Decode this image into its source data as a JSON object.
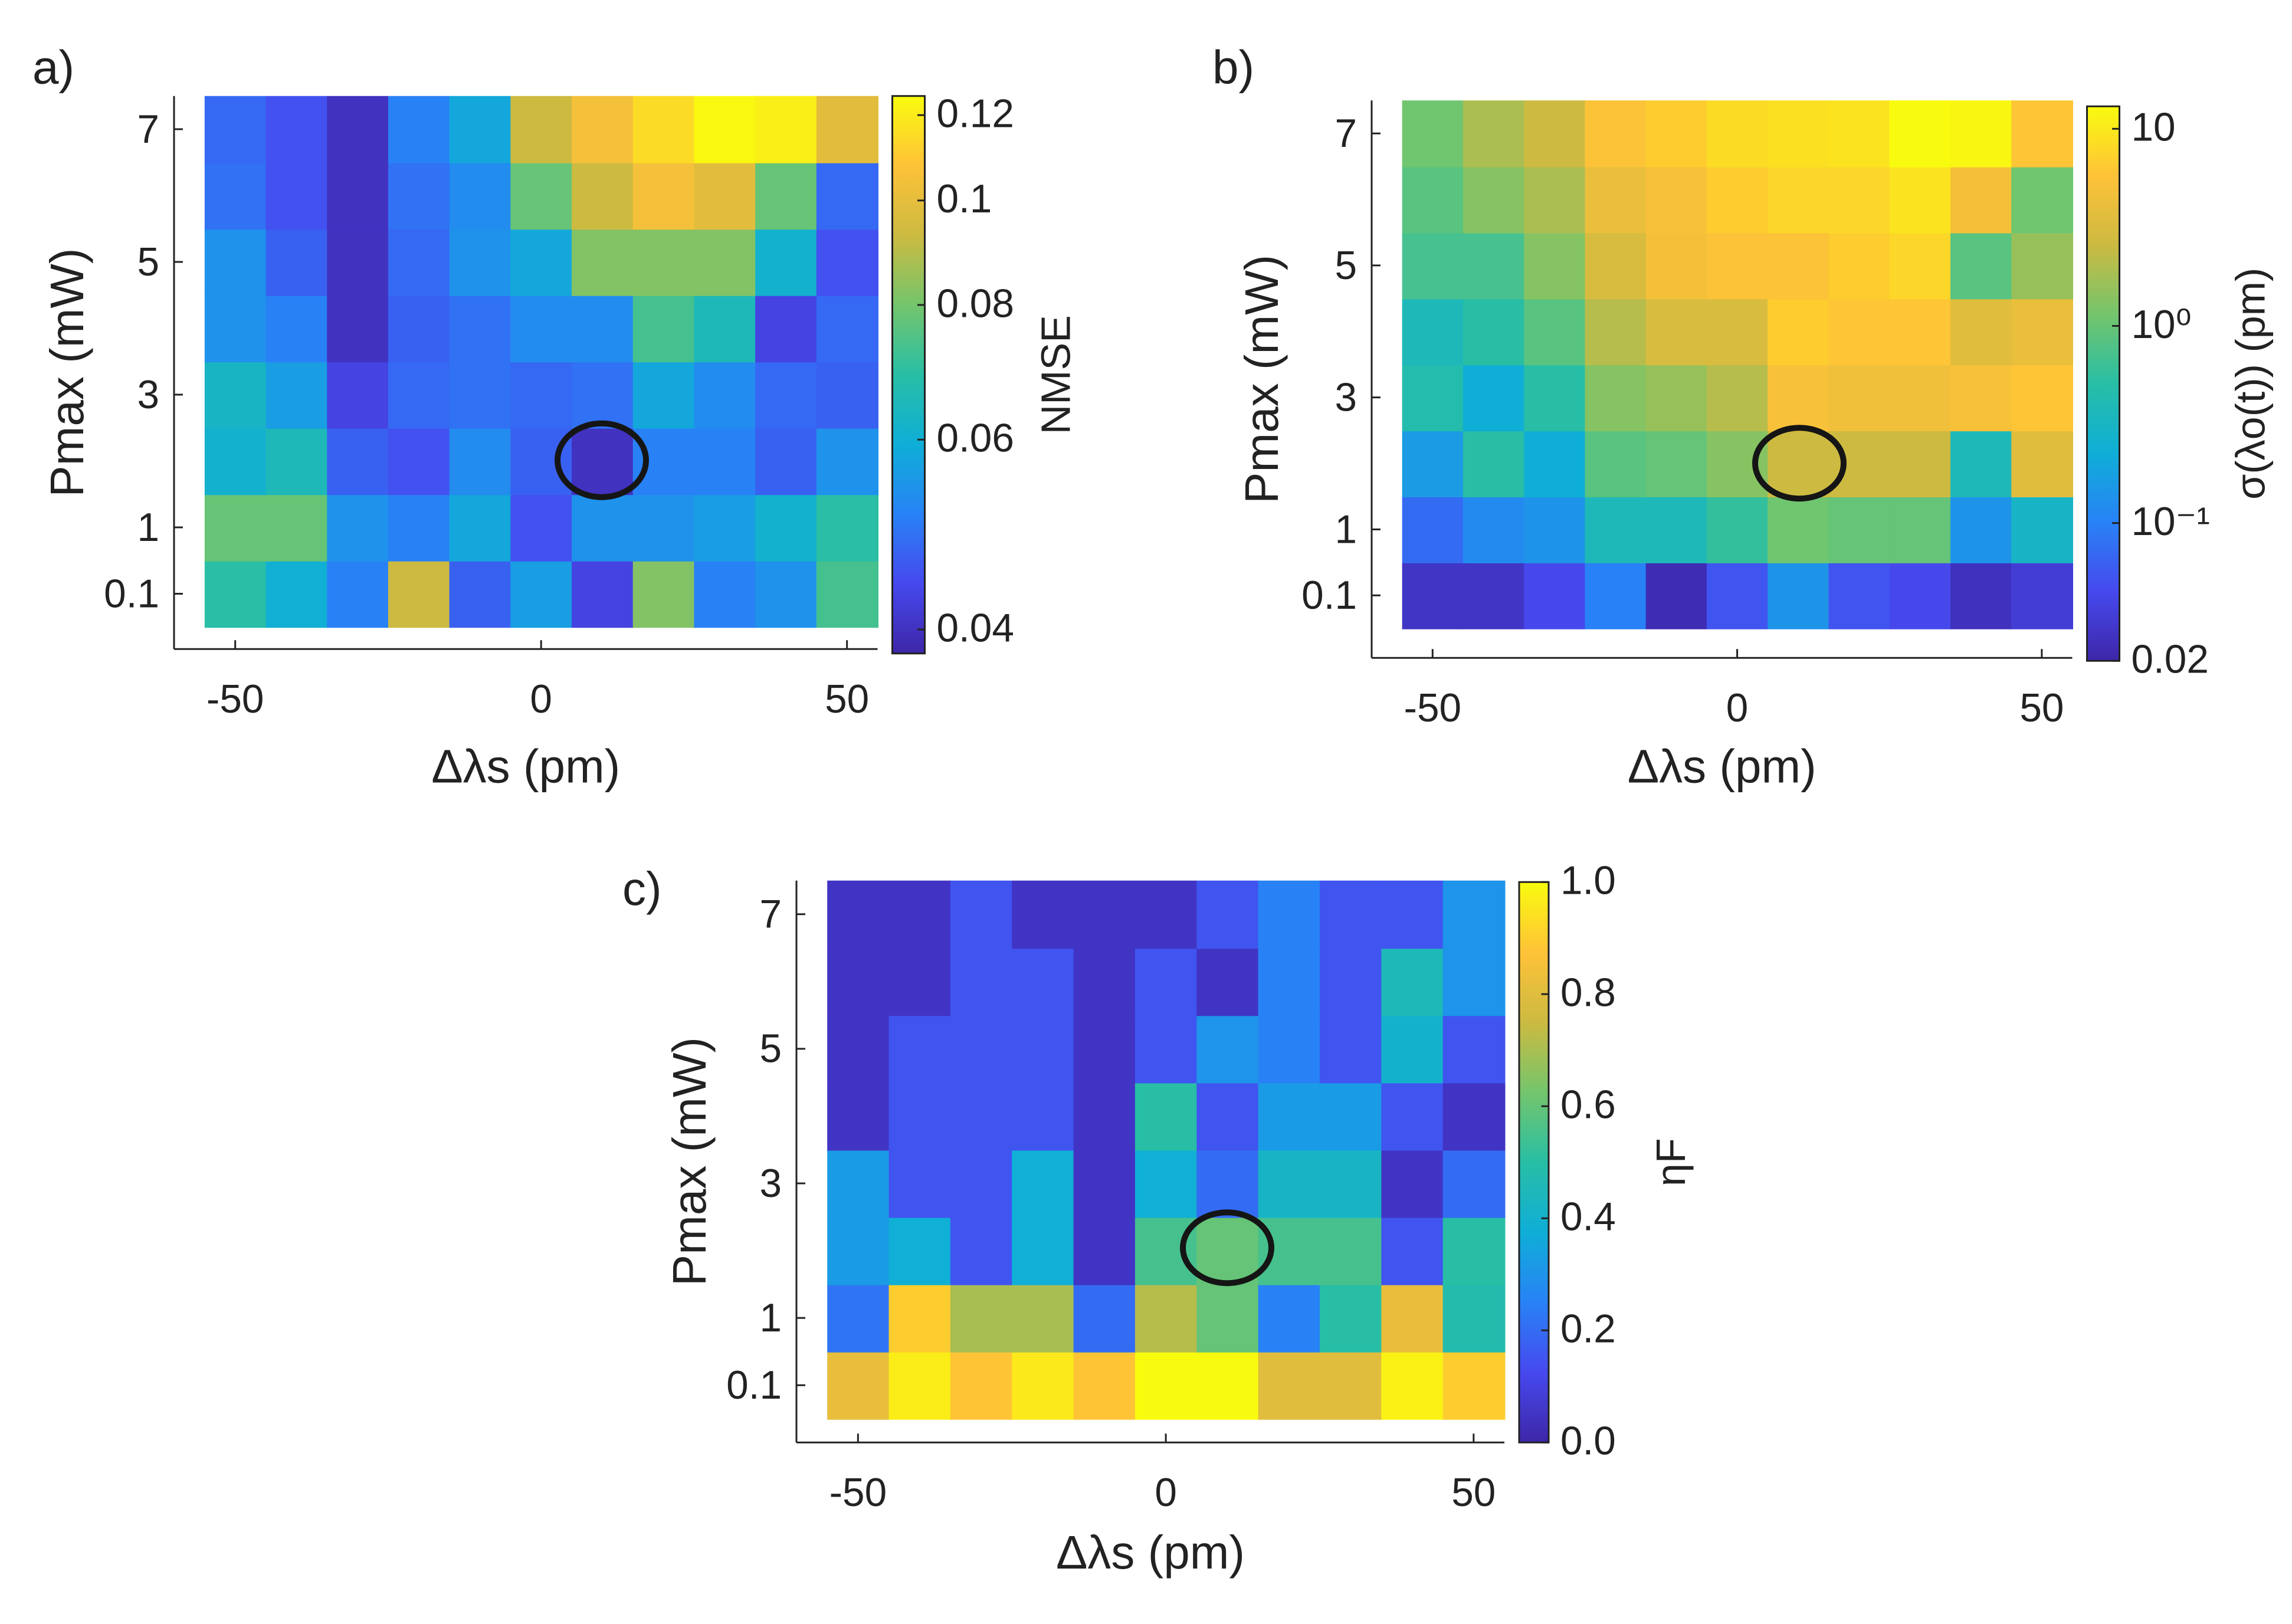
{
  "chart_data": [
    {
      "type": "heatmap",
      "panel_label": "a)",
      "xlabel": "Δλs (pm)",
      "ylabel": "Pmax (mW)",
      "colorbar_label": "NMSE",
      "x": [
        -50,
        -40,
        -30,
        -20,
        -10,
        0,
        10,
        20,
        30,
        40,
        50
      ],
      "y_categories": [
        0.1,
        1,
        null,
        3,
        null,
        5,
        null,
        7
      ],
      "values": [
        [
          0.069,
          0.06,
          0.051,
          0.093,
          0.047,
          0.056,
          0.043,
          0.082,
          0.051,
          0.054,
          0.073
        ],
        [
          0.078,
          0.078,
          0.054,
          0.051,
          0.058,
          0.045,
          0.054,
          0.054,
          0.056,
          0.061,
          0.069
        ],
        [
          0.061,
          0.065,
          0.047,
          0.045,
          0.053,
          0.047,
          0.04,
          0.051,
          0.051,
          0.047,
          0.054
        ],
        [
          0.063,
          0.056,
          0.043,
          0.048,
          0.049,
          0.048,
          0.049,
          0.058,
          0.053,
          0.048,
          0.047
        ],
        [
          0.054,
          0.051,
          0.04,
          0.047,
          0.049,
          0.053,
          0.053,
          0.073,
          0.065,
          0.043,
          0.048
        ],
        [
          0.054,
          0.047,
          0.04,
          0.048,
          0.054,
          0.058,
          0.082,
          0.082,
          0.082,
          0.061,
          0.045
        ],
        [
          0.049,
          0.045,
          0.04,
          0.049,
          0.053,
          0.078,
          0.093,
          0.105,
          0.099,
          0.078,
          0.048
        ],
        [
          0.048,
          0.045,
          0.04,
          0.051,
          0.058,
          0.093,
          0.105,
          0.115,
          0.124,
          0.121,
          0.099
        ]
      ],
      "xlim": [
        -60,
        55
      ],
      "xticks": [
        -50,
        0,
        50
      ],
      "clim": [
        0.038,
        0.125
      ],
      "cticks": [
        0.04,
        0.06,
        0.08,
        0.1,
        0.12
      ],
      "color_scale": "log",
      "colormap": "parula"
    },
    {
      "type": "heatmap",
      "panel_label": "b)",
      "xlabel": "Δλs (pm)",
      "ylabel": "Pmax (mW)",
      "colorbar_label": "σ(λo(t)) (pm)",
      "x": [
        -50,
        -40,
        -30,
        -20,
        -10,
        0,
        10,
        20,
        30,
        40,
        50
      ],
      "y_categories": [
        0.1,
        1,
        null,
        3,
        null,
        5,
        null,
        7
      ],
      "values": [
        [
          0.028,
          0.028,
          0.044,
          0.1,
          0.023,
          0.053,
          0.14,
          0.053,
          0.044,
          0.026,
          0.034
        ],
        [
          0.073,
          0.12,
          0.14,
          0.37,
          0.37,
          0.58,
          1.1,
          0.98,
          0.98,
          0.14,
          0.3
        ],
        [
          0.16,
          0.51,
          0.23,
          0.86,
          0.98,
          1.35,
          2.6,
          2.6,
          2.6,
          0.37,
          3.6
        ],
        [
          0.45,
          0.23,
          0.51,
          1.35,
          1.6,
          2.1,
          5.2,
          4.6,
          4.6,
          5.2,
          6.0
        ],
        [
          0.37,
          0.51,
          0.86,
          2.1,
          3.1,
          3.1,
          6.8,
          6.0,
          6.0,
          3.6,
          4.1
        ],
        [
          0.7,
          0.7,
          1.35,
          3.1,
          4.9,
          5.6,
          5.6,
          6.8,
          7.7,
          0.86,
          1.6
        ],
        [
          0.86,
          1.35,
          1.9,
          4.1,
          5.2,
          6.8,
          7.7,
          7.7,
          9.4,
          4.9,
          1.1
        ],
        [
          1.1,
          1.9,
          2.6,
          5.6,
          6.8,
          8.3,
          8.8,
          9.4,
          13.0,
          12.2,
          6.0
        ]
      ],
      "xlim": [
        -60,
        55
      ],
      "xticks": [
        -50,
        0,
        50
      ],
      "clim": [
        0.02,
        13
      ],
      "cticks": [
        0.02,
        {
          "value": 0.1,
          "label": "10⁻¹"
        },
        {
          "value": 1,
          "label": "10⁰"
        },
        10
      ],
      "color_scale": "log",
      "colormap": "parula"
    },
    {
      "type": "heatmap",
      "panel_label": "c)",
      "xlabel": "Δλs (pm)",
      "ylabel": "Pmax (mW)",
      "colorbar_label": "ηF",
      "x": [
        -50,
        -40,
        -30,
        -20,
        -10,
        0,
        10,
        20,
        30,
        40,
        50
      ],
      "y_categories": [
        0.1,
        1,
        null,
        3,
        null,
        5,
        null,
        7
      ],
      "values": [
        [
          0.82,
          0.97,
          0.88,
          0.96,
          0.88,
          1.0,
          1.0,
          0.8,
          0.8,
          0.98,
          0.9
        ],
        [
          0.22,
          0.9,
          0.7,
          0.7,
          0.2,
          0.72,
          0.6,
          0.25,
          0.5,
          0.82,
          0.48
        ],
        [
          0.32,
          0.38,
          0.15,
          0.38,
          0.05,
          0.55,
          0.6,
          0.55,
          0.55,
          0.15,
          0.5
        ],
        [
          0.32,
          0.15,
          0.15,
          0.38,
          0.05,
          0.38,
          0.2,
          0.42,
          0.42,
          0.05,
          0.2
        ],
        [
          0.05,
          0.15,
          0.15,
          0.15,
          0.05,
          0.5,
          0.15,
          0.32,
          0.32,
          0.15,
          0.05
        ],
        [
          0.05,
          0.15,
          0.15,
          0.15,
          0.05,
          0.15,
          0.3,
          0.25,
          0.15,
          0.4,
          0.15
        ],
        [
          0.05,
          0.05,
          0.15,
          0.15,
          0.05,
          0.15,
          0.05,
          0.25,
          0.15,
          0.45,
          0.3
        ],
        [
          0.05,
          0.05,
          0.15,
          0.05,
          0.05,
          0.05,
          0.15,
          0.25,
          0.15,
          0.15,
          0.3
        ]
      ],
      "xlim": [
        -60,
        55
      ],
      "xticks": [
        -50,
        0,
        50
      ],
      "clim": [
        0,
        1
      ],
      "cticks": [
        {
          "value": 0,
          "label": "0.0"
        },
        0.2,
        0.4,
        0.6,
        0.8,
        {
          "value": 1,
          "label": "1.0"
        }
      ],
      "color_scale": "linear",
      "colormap": "parula"
    }
  ]
}
